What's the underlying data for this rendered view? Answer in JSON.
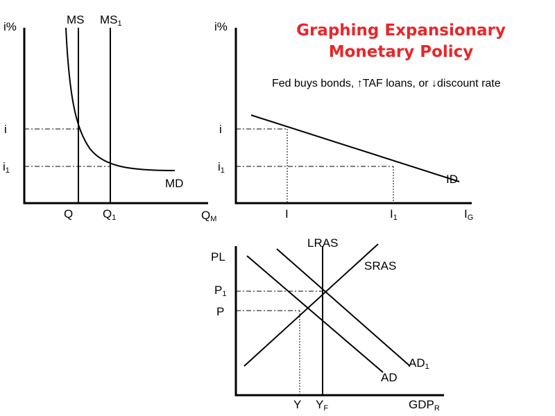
{
  "title": {
    "line1": "Graphing Expansionary",
    "line2": "Monetary Policy"
  },
  "note": "Fed buys bonds, ↑TAF loans, or ↓discount rate",
  "money_market": {
    "y_axis": "i%",
    "ms": "MS",
    "ms1_base": "MS",
    "ms1_sub": "1",
    "md": "MD",
    "i": "i",
    "i1_base": "i",
    "i1_sub": "1",
    "q": "Q",
    "q1_base": "Q",
    "q1_sub": "1",
    "x_axis_base": "Q",
    "x_axis_sub": "M"
  },
  "investment_market": {
    "y_axis": "i%",
    "i": "i",
    "i1_base": "i",
    "i1_sub": "1",
    "id": "ID",
    "inv": "I",
    "inv1_base": "I",
    "inv1_sub": "1",
    "x_axis_base": "I",
    "x_axis_sub": "G"
  },
  "ad_as": {
    "y_axis": "PL",
    "lras": "LRAS",
    "sras": "SRAS",
    "p1_base": "P",
    "p1_sub": "1",
    "p": "P",
    "ad": "AD",
    "ad1_base": "AD",
    "ad1_sub": "1",
    "y": "Y",
    "yf_base": "Y",
    "yf_sub": "F",
    "x_axis_base": "GDP",
    "x_axis_sub": "R"
  }
}
